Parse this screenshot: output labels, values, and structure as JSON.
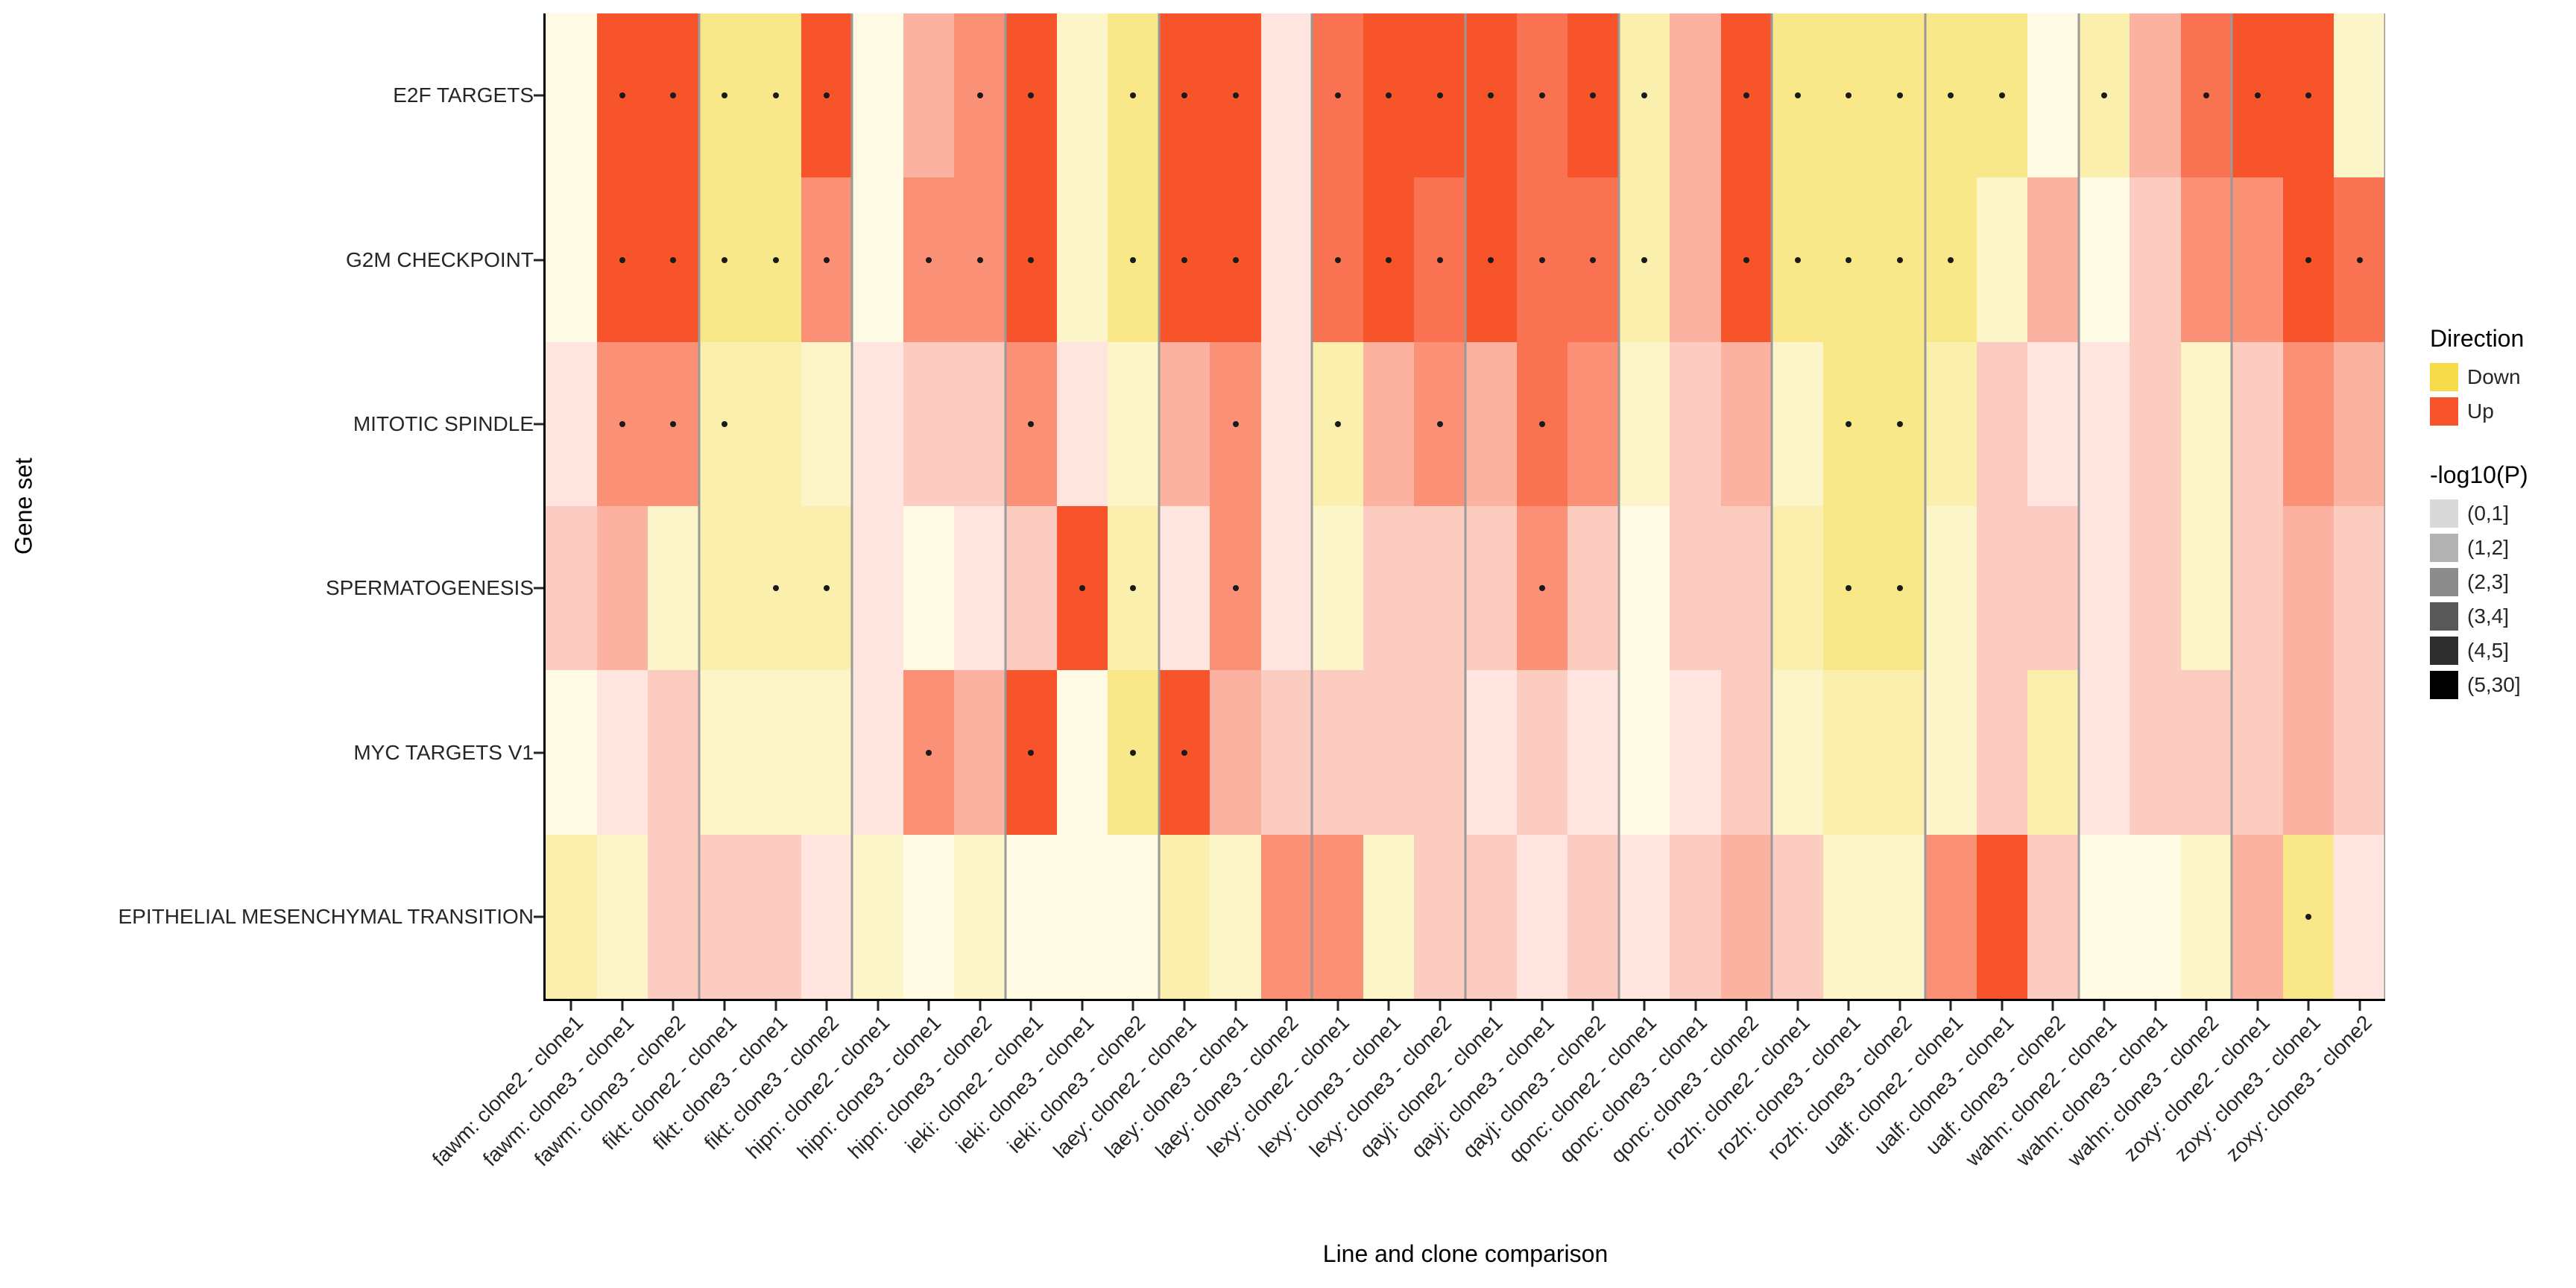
{
  "chart_data": {
    "type": "heatmap",
    "title": "",
    "xlabel": "Line and clone comparison",
    "ylabel": "Gene set",
    "rows": [
      "E2F TARGETS",
      "G2M CHECKPOINT",
      "MITOTIC SPINDLE",
      "SPERMATOGENESIS",
      "MYC TARGETS V1",
      "EPITHELIAL MESENCHYMAL TRANSITION"
    ],
    "columns": [
      "fawm: clone2 - clone1",
      "fawm: clone3 - clone1",
      "fawm: clone3 - clone2",
      "fikt: clone2 - clone1",
      "fikt: clone3 - clone1",
      "fikt: clone3 - clone2",
      "hipn: clone2 - clone1",
      "hipn: clone3 - clone1",
      "hipn: clone3 - clone2",
      "ieki: clone2 - clone1",
      "ieki: clone3 - clone1",
      "ieki: clone3 - clone2",
      "laey: clone2 - clone1",
      "laey: clone3 - clone1",
      "laey: clone3 - clone2",
      "lexy: clone2 - clone1",
      "lexy: clone3 - clone1",
      "lexy: clone3 - clone2",
      "qayj: clone2 - clone1",
      "qayj: clone3 - clone1",
      "qayj: clone3 - clone2",
      "qonc: clone2 - clone1",
      "qonc: clone3 - clone1",
      "qonc: clone3 - clone2",
      "rozh: clone2 - clone1",
      "rozh: clone3 - clone1",
      "rozh: clone3 - clone2",
      "ualf: clone2 - clone1",
      "ualf: clone3 - clone1",
      "ualf: clone3 - clone2",
      "wahn: clone2 - clone1",
      "wahn: clone3 - clone1",
      "wahn: clone3 - clone2",
      "zoxy: clone2 - clone1",
      "zoxy: clone3 - clone1",
      "zoxy: clone3 - clone2"
    ],
    "group_size": 3,
    "direction_colors": {
      "Down": "#F6DC4B",
      "Up": "#F8542C"
    },
    "p_bin_labels": [
      "(0,1]",
      "(1,2]",
      "(2,3]",
      "(3,4]",
      "(4,5]",
      "(5,30]"
    ],
    "p_bin_alphas": [
      0.15,
      0.3,
      0.45,
      0.65,
      0.82,
      1
    ],
    "cell_encoding": "direction (U=Up, D=Down) + -log10(P) bin (1-6) + optional * = significance dot",
    "cells": [
      [
        "D1",
        "U6*",
        "U6*",
        "D4*",
        "D4*",
        "U6*",
        "D1",
        "U3",
        "U4*",
        "U6*",
        "D2",
        "D4*",
        "U6*",
        "U6*",
        "U1",
        "U5*",
        "U6*",
        "U6*",
        "U6*",
        "U5*",
        "U6*",
        "D3*",
        "U3",
        "U6*",
        "D4*",
        "D4*",
        "D4*",
        "D4*",
        "D4*",
        "D1",
        "D3*",
        "U3",
        "U5*",
        "U6*",
        "U6*",
        "D2"
      ],
      [
        "D1",
        "U6*",
        "U6*",
        "D4*",
        "D4*",
        "U4*",
        "D1",
        "U4*",
        "U4*",
        "U6*",
        "D2",
        "D4*",
        "U6*",
        "U6*",
        "U1",
        "U5*",
        "U6*",
        "U5*",
        "U6*",
        "U5*",
        "U5*",
        "D3*",
        "U3",
        "U6*",
        "D4*",
        "D4*",
        "D4*",
        "D4*",
        "D2",
        "U3",
        "D1",
        "U2",
        "U4",
        "U4",
        "U6*",
        "U5*"
      ],
      [
        "U1",
        "U4*",
        "U4*",
        "D3*",
        "D3",
        "D2",
        "U1",
        "U2",
        "U2",
        "U4*",
        "U1",
        "D2",
        "U3",
        "U4*",
        "U1",
        "D3*",
        "U3",
        "U4*",
        "U3",
        "U5*",
        "U4",
        "D2",
        "U2",
        "U3",
        "D2",
        "D4*",
        "D4*",
        "D3",
        "U2",
        "U1",
        "U1",
        "U2",
        "D2",
        "U2",
        "U4",
        "U3"
      ],
      [
        "U2",
        "U3",
        "D2",
        "D3",
        "D3*",
        "D3*",
        "U1",
        "D1",
        "U1",
        "U2",
        "U6*",
        "D3*",
        "U1",
        "U4*",
        "U1",
        "D2",
        "U2",
        "U2",
        "U2",
        "U4*",
        "U2",
        "D1",
        "U2",
        "U2",
        "D3",
        "D4*",
        "D4*",
        "D2",
        "U2",
        "U2",
        "U1",
        "U2",
        "D2",
        "U2",
        "U3",
        "U2"
      ],
      [
        "D1",
        "U1",
        "U2",
        "D2",
        "D2",
        "D2",
        "U1",
        "U4*",
        "U3",
        "U6*",
        "D1",
        "D4*",
        "U6*",
        "U3",
        "U2",
        "U2",
        "U2",
        "U2",
        "U1",
        "U2",
        "U1",
        "D1",
        "U1",
        "U2",
        "D2",
        "D3",
        "D3",
        "D2",
        "U2",
        "D3",
        "U1",
        "U2",
        "U2",
        "U2",
        "U3",
        "U2"
      ],
      [
        "D3",
        "D2",
        "U2",
        "U2",
        "U2",
        "U1",
        "D2",
        "D1",
        "D2",
        "D1",
        "D1",
        "D1",
        "D3",
        "D2",
        "U4",
        "U4",
        "D2",
        "U2",
        "U2",
        "U1",
        "U2",
        "U1",
        "U2",
        "U3",
        "U2",
        "D2",
        "D2",
        "U4",
        "U6",
        "U2",
        "D1",
        "D1",
        "D2",
        "U3",
        "D4*",
        "U1"
      ]
    ],
    "legend": {
      "direction_title": "Direction",
      "direction_items": [
        "Down",
        "Up"
      ],
      "p_title": "-log10(P)"
    }
  }
}
